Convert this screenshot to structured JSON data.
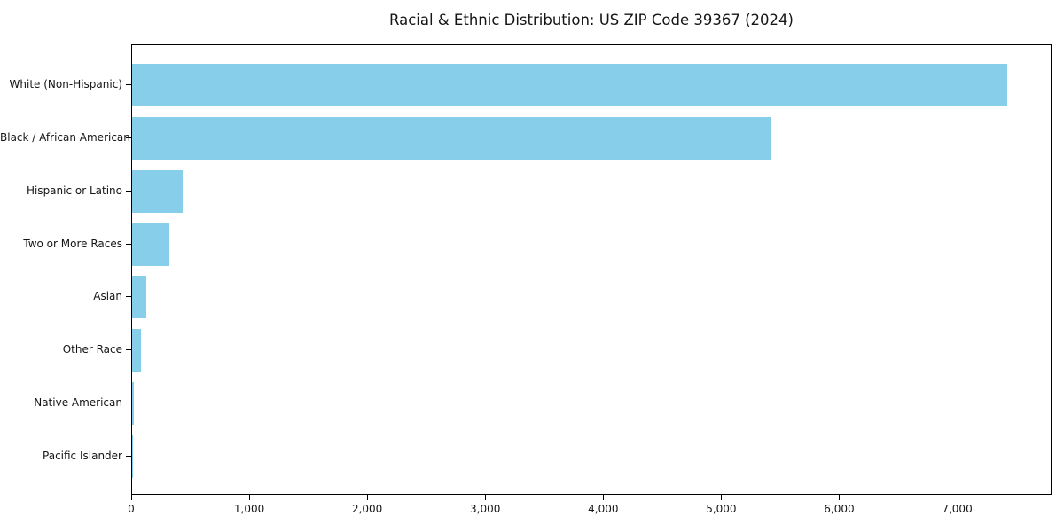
{
  "title": "Racial & Ethnic Distribution: US ZIP Code 39367 (2024)",
  "colors": {
    "bar": "#87CEEB",
    "text": "#151515",
    "axis": "#000000",
    "background": "#ffffff"
  },
  "chart_data": {
    "type": "bar",
    "orientation": "horizontal",
    "title": "Racial & Ethnic Distribution: US ZIP Code 39367 (2024)",
    "categories": [
      "White (Non-Hispanic)",
      "Black / African American",
      "Hispanic or Latino",
      "Two or More Races",
      "Asian",
      "Other Race",
      "Native American",
      "Pacific Islander"
    ],
    "values": [
      7420,
      5420,
      430,
      315,
      120,
      78,
      12,
      2
    ],
    "xlabel": "",
    "ylabel": "",
    "xlim": [
      0,
      7800
    ],
    "xticks": [
      0,
      1000,
      2000,
      3000,
      4000,
      5000,
      6000,
      7000
    ],
    "xtick_labels": [
      "0",
      "1,000",
      "2,000",
      "3,000",
      "4,000",
      "5,000",
      "6,000",
      "7,000"
    ],
    "grid": false,
    "legend": null,
    "bar_color": "#87CEEB"
  }
}
